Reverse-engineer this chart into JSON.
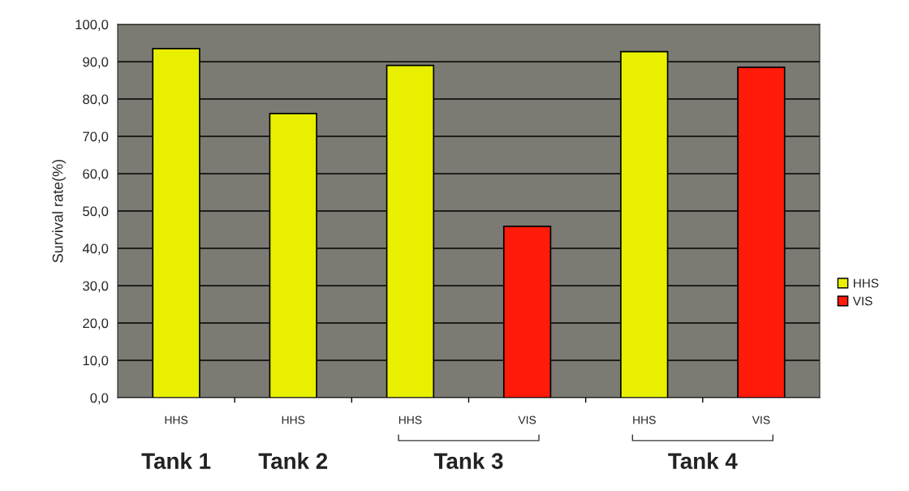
{
  "chart_data": {
    "type": "bar",
    "ylabel": "Survival rate(%)",
    "categories": [
      "HHS",
      "HHS",
      "HHS",
      "VIS",
      "HHS",
      "VIS"
    ],
    "series": [
      {
        "name": "HHS",
        "color": "#e8f000",
        "values": [
          93.5,
          76.1,
          89.0,
          null,
          92.7,
          null
        ]
      },
      {
        "name": "VIS",
        "color": "#ff1a0a",
        "values": [
          null,
          null,
          null,
          45.9,
          null,
          88.5
        ]
      }
    ],
    "ylim": [
      0,
      100
    ],
    "yticks": [
      {
        "value": 0,
        "label": "0,0"
      },
      {
        "value": 10,
        "label": "10,0"
      },
      {
        "value": 20,
        "label": "20,0"
      },
      {
        "value": 30,
        "label": "30,0"
      },
      {
        "value": 40,
        "label": "40,0"
      },
      {
        "value": 50,
        "label": "50,0"
      },
      {
        "value": 60,
        "label": "60,0"
      },
      {
        "value": 70,
        "label": "70,0"
      },
      {
        "value": 80,
        "label": "80,0"
      },
      {
        "value": 90,
        "label": "90,0"
      },
      {
        "value": 100,
        "label": "100,0"
      }
    ],
    "grid": "y",
    "legend": "right",
    "annotations": [
      "Tank 1",
      "Tank 2",
      "Tank 3",
      "Tank 4"
    ]
  }
}
